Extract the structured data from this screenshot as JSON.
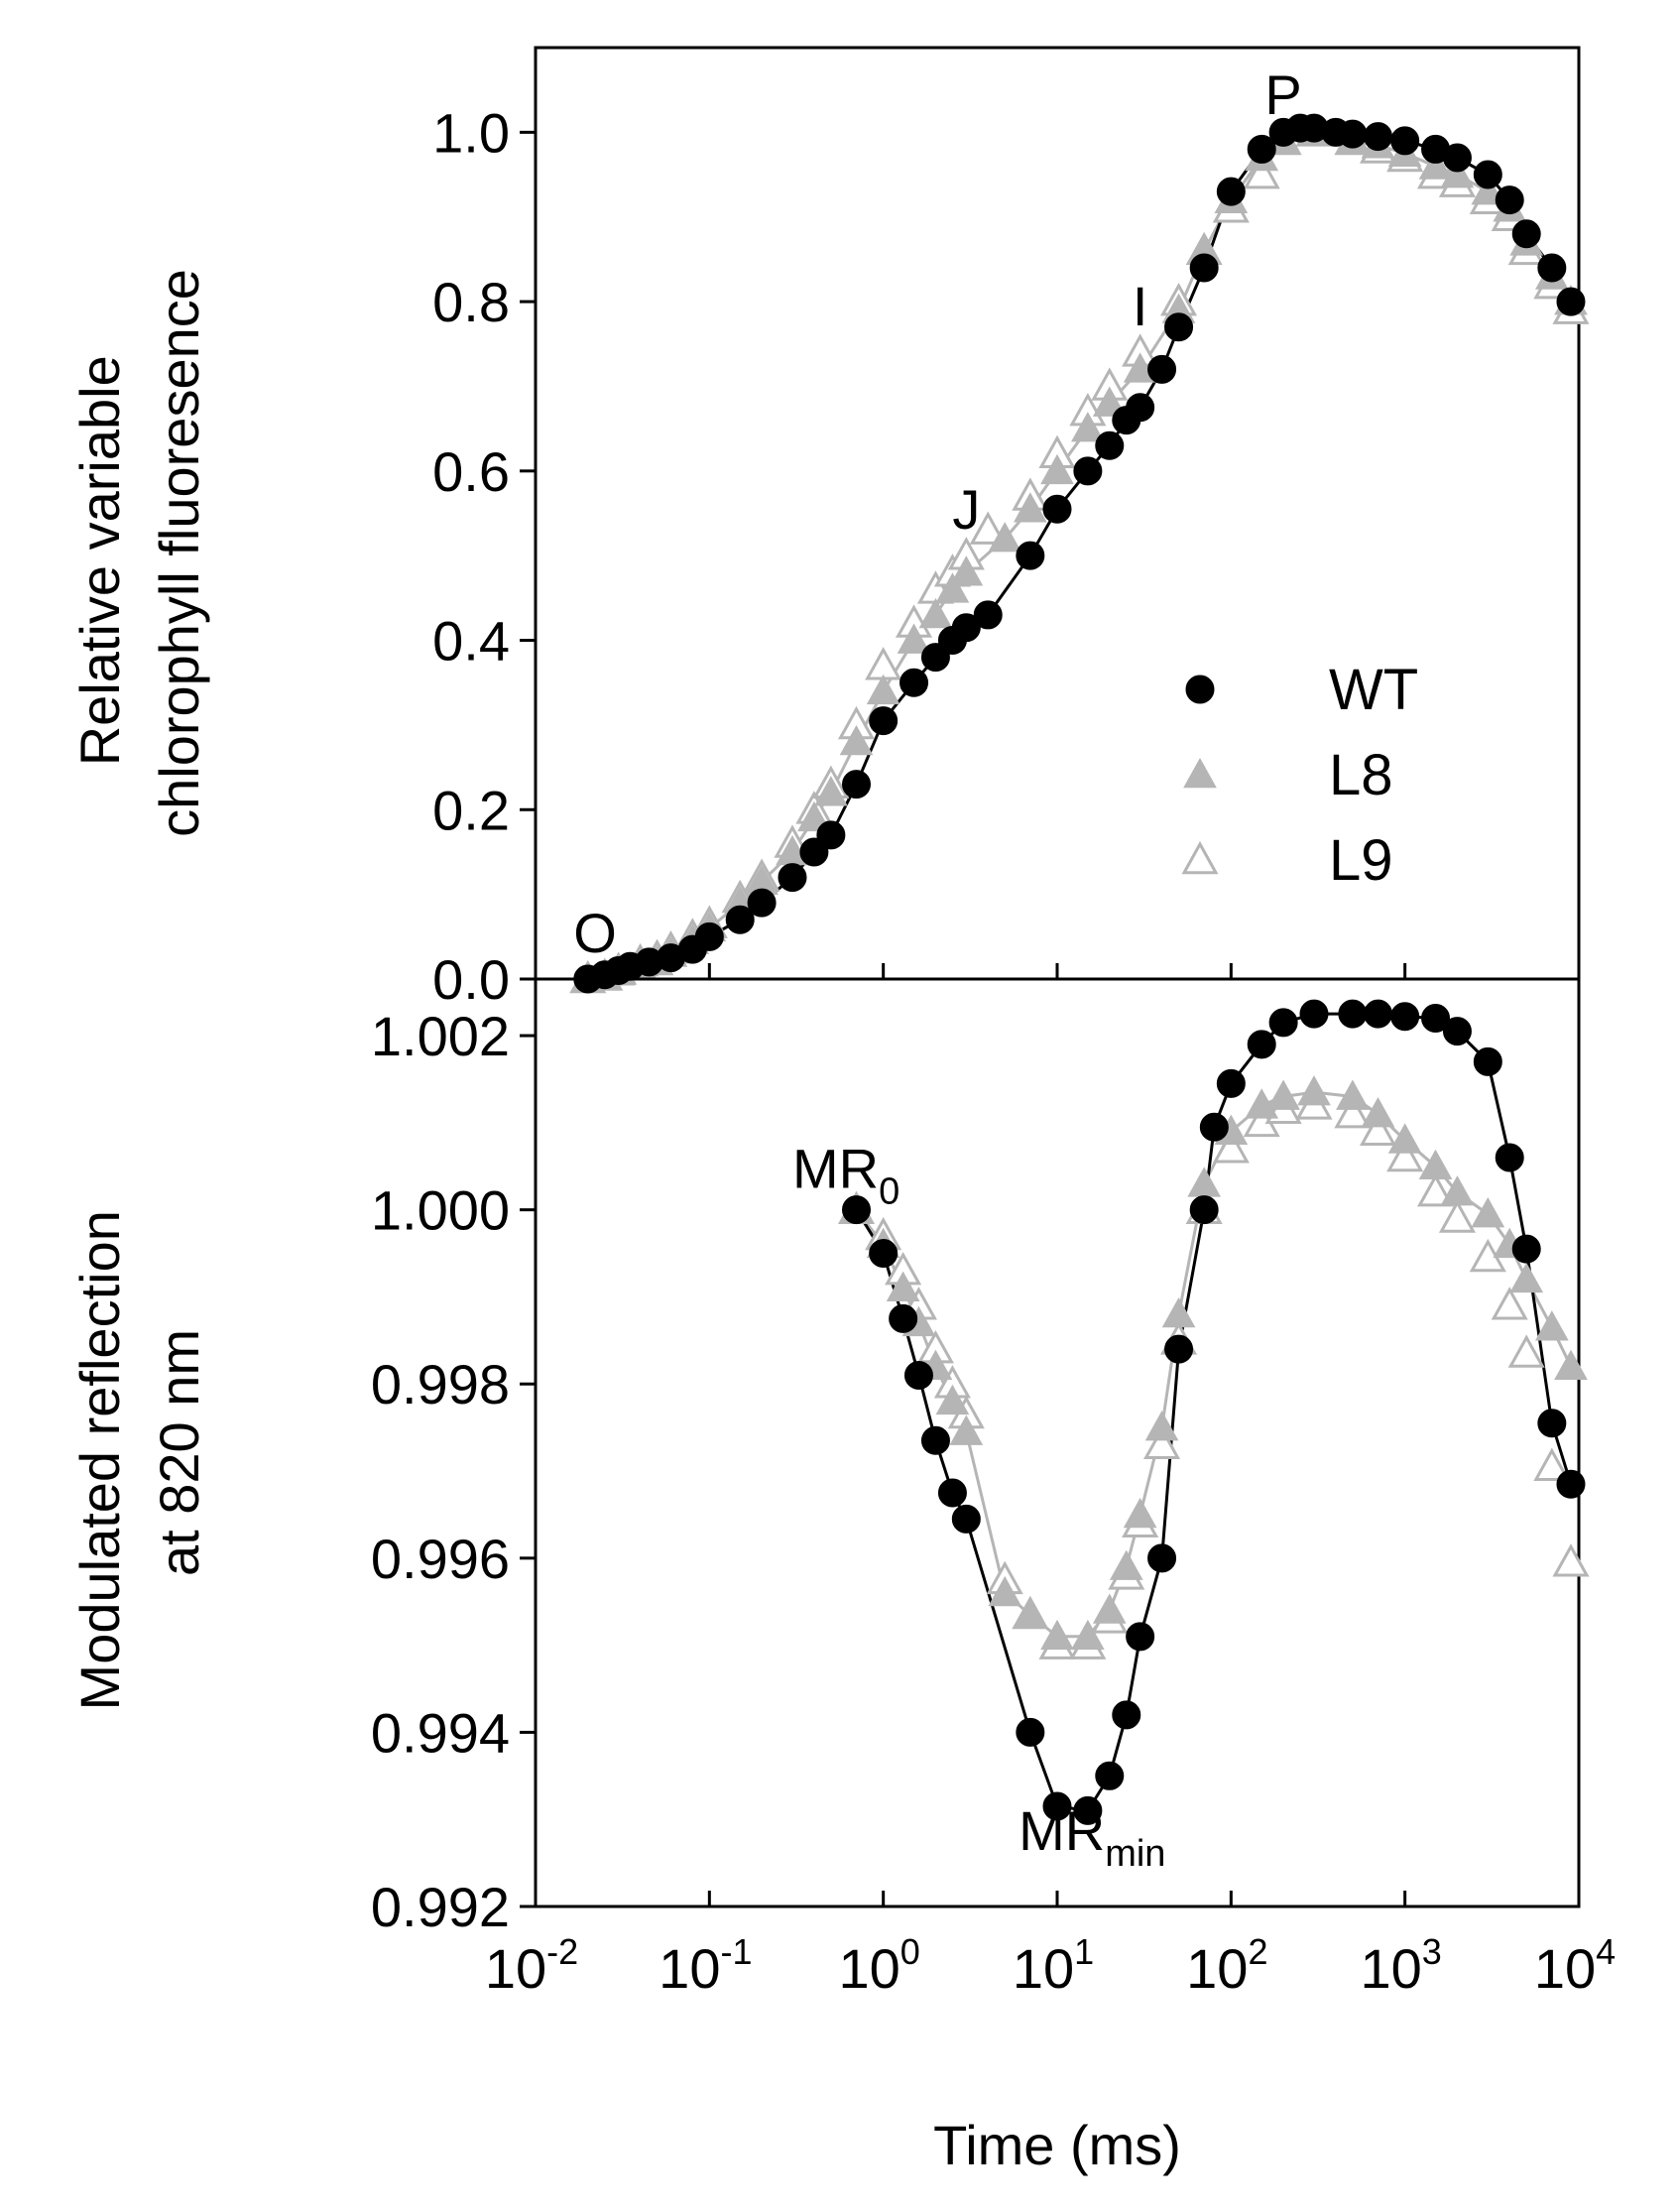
{
  "chart_data": [
    {
      "panel": "top",
      "type": "scatter",
      "ylabel_lines": [
        "Relative variable",
        "chlorophyll fluoresence"
      ],
      "xscale": "log",
      "xlim": [
        0.01,
        10000
      ],
      "ylim": [
        0.0,
        1.1
      ],
      "yticks": [
        0.0,
        0.2,
        0.4,
        0.6,
        0.8,
        1.0
      ],
      "ytick_labels": [
        "0.0",
        "0.2",
        "0.4",
        "0.6",
        "0.8",
        "1.0"
      ],
      "annotations": [
        {
          "text": "O",
          "x": 0.022,
          "y": 0.02
        },
        {
          "text": "J",
          "x": 3.0,
          "y": 0.52
        },
        {
          "text": "I",
          "x": 30,
          "y": 0.76
        },
        {
          "text": "P",
          "x": 200,
          "y": 1.01
        }
      ],
      "legend": {
        "placement": "lower-right",
        "entries": [
          {
            "label": "WT",
            "marker": "filled-circle",
            "color": "#000000"
          },
          {
            "label": "L8",
            "marker": "filled-triangle",
            "color": "#b5b5b5"
          },
          {
            "label": "L9",
            "marker": "open-triangle",
            "color": "#b5b5b5"
          }
        ]
      },
      "series": [
        {
          "name": "WT",
          "marker": "filled-circle",
          "color": "#000000",
          "line": true,
          "x": [
            0.02,
            0.025,
            0.03,
            0.035,
            0.045,
            0.06,
            0.08,
            0.1,
            0.15,
            0.2,
            0.3,
            0.4,
            0.5,
            0.7,
            1.0,
            1.5,
            2.0,
            2.5,
            3.0,
            4.0,
            7.0,
            10,
            15,
            20,
            25,
            30,
            40,
            50,
            70,
            100,
            150,
            200,
            250,
            300,
            400,
            500,
            700,
            1000,
            1500,
            2000,
            3000,
            4000,
            5000,
            7000,
            9000
          ],
          "y": [
            0.0,
            0.005,
            0.01,
            0.015,
            0.02,
            0.025,
            0.035,
            0.05,
            0.07,
            0.09,
            0.12,
            0.15,
            0.17,
            0.23,
            0.305,
            0.35,
            0.38,
            0.4,
            0.415,
            0.43,
            0.5,
            0.555,
            0.6,
            0.63,
            0.66,
            0.675,
            0.72,
            0.77,
            0.84,
            0.93,
            0.98,
            1.0,
            1.005,
            1.005,
            1.0,
            0.998,
            0.995,
            0.99,
            0.98,
            0.97,
            0.95,
            0.92,
            0.88,
            0.84,
            0.8
          ]
        },
        {
          "name": "L8",
          "marker": "filled-triangle",
          "color": "#b5b5b5",
          "line": true,
          "x": [
            0.02,
            0.025,
            0.03,
            0.04,
            0.05,
            0.06,
            0.08,
            0.1,
            0.15,
            0.2,
            0.3,
            0.4,
            0.5,
            0.7,
            1.0,
            1.5,
            2.0,
            2.5,
            3.0,
            5.0,
            7.0,
            10,
            15,
            20,
            30,
            50,
            70,
            100,
            150,
            200,
            300,
            500,
            700,
            1000,
            1500,
            2000,
            3000,
            4000,
            5000,
            7000,
            9000
          ],
          "y": [
            0.0,
            0.003,
            0.008,
            0.015,
            0.02,
            0.03,
            0.045,
            0.06,
            0.09,
            0.115,
            0.15,
            0.19,
            0.22,
            0.28,
            0.34,
            0.4,
            0.43,
            0.46,
            0.48,
            0.52,
            0.555,
            0.6,
            0.65,
            0.68,
            0.72,
            0.79,
            0.86,
            0.92,
            0.97,
            0.99,
            1.0,
            0.99,
            0.985,
            0.975,
            0.96,
            0.95,
            0.93,
            0.91,
            0.87,
            0.83,
            0.8
          ]
        },
        {
          "name": "L9",
          "marker": "open-triangle",
          "color": "#b5b5b5",
          "line": false,
          "x": [
            0.02,
            0.025,
            0.03,
            0.04,
            0.05,
            0.06,
            0.08,
            0.1,
            0.15,
            0.2,
            0.3,
            0.4,
            0.5,
            0.7,
            1.0,
            1.5,
            2.0,
            2.5,
            3.0,
            4.0,
            7.0,
            10,
            15,
            20,
            30,
            50,
            70,
            100,
            150,
            200,
            300,
            500,
            700,
            1000,
            1500,
            2000,
            3000,
            4000,
            5000,
            7000,
            9000
          ],
          "y": [
            0.0,
            0.003,
            0.01,
            0.02,
            0.025,
            0.035,
            0.05,
            0.065,
            0.095,
            0.12,
            0.16,
            0.2,
            0.23,
            0.3,
            0.37,
            0.42,
            0.46,
            0.48,
            0.5,
            0.53,
            0.57,
            0.62,
            0.67,
            0.7,
            0.74,
            0.8,
            0.86,
            0.91,
            0.95,
            0.99,
            1.0,
            0.99,
            0.98,
            0.97,
            0.95,
            0.94,
            0.92,
            0.9,
            0.86,
            0.82,
            0.79
          ]
        }
      ]
    },
    {
      "panel": "bottom",
      "type": "scatter",
      "ylabel_lines": [
        "Modulated reflection",
        "at 820 nm"
      ],
      "xlabel": "Time (ms)",
      "xscale": "log",
      "xlim": [
        0.01,
        10000
      ],
      "xticks": [
        0.01,
        0.1,
        1,
        10,
        100,
        1000,
        10000
      ],
      "xtick_labels": [
        {
          "base": "10",
          "exp": "-2"
        },
        {
          "base": "10",
          "exp": "-1"
        },
        {
          "base": "10",
          "exp": "0"
        },
        {
          "base": "10",
          "exp": "1"
        },
        {
          "base": "10",
          "exp": "2"
        },
        {
          "base": "10",
          "exp": "3"
        },
        {
          "base": "10",
          "exp": "4"
        }
      ],
      "ylim": [
        0.992,
        1.00265
      ],
      "yticks": [
        0.992,
        0.994,
        0.996,
        0.998,
        1.0,
        1.002
      ],
      "ytick_labels": [
        "0.992",
        "0.994",
        "0.996",
        "0.998",
        "1.000",
        "1.002"
      ],
      "annotations": [
        {
          "base": "MR",
          "sub": "0",
          "x": 0.3,
          "y": 1.00025
        },
        {
          "base": "MR",
          "sub": "min",
          "x": 6,
          "y": 0.99265
        }
      ],
      "series": [
        {
          "name": "WT",
          "marker": "filled-circle",
          "color": "#000000",
          "line": true,
          "x": [
            0.7,
            1.0,
            1.3,
            1.6,
            2.0,
            2.5,
            3.0,
            7.0,
            10,
            15,
            20,
            25,
            30,
            40,
            50,
            70,
            80,
            100,
            150,
            200,
            300,
            500,
            700,
            1000,
            1500,
            2000,
            3000,
            4000,
            5000,
            7000,
            9000
          ],
          "y": [
            1.0,
            0.9995,
            0.99875,
            0.9981,
            0.99735,
            0.99675,
            0.99645,
            0.994,
            0.99315,
            0.9931,
            0.9935,
            0.9942,
            0.9951,
            0.996,
            0.9984,
            1.0,
            1.00095,
            1.00145,
            1.0019,
            1.00215,
            1.00225,
            1.00225,
            1.00225,
            1.00222,
            1.0022,
            1.00205,
            1.0017,
            1.0006,
            0.99955,
            0.99755,
            0.99685
          ]
        },
        {
          "name": "L8",
          "marker": "filled-triangle",
          "color": "#b5b5b5",
          "line": true,
          "x": [
            0.7,
            1.0,
            1.3,
            1.6,
            2.0,
            2.5,
            3.0,
            5.0,
            7.0,
            10,
            15,
            20,
            25,
            30,
            40,
            50,
            70,
            100,
            150,
            200,
            300,
            500,
            700,
            1000,
            1500,
            2000,
            3000,
            4000,
            5000,
            7000,
            9000
          ],
          "y": [
            1.0,
            0.9996,
            0.9991,
            0.9987,
            0.9982,
            0.9978,
            0.99745,
            0.9956,
            0.99535,
            0.9951,
            0.9951,
            0.9954,
            0.9959,
            0.9965,
            0.9975,
            0.9988,
            1.0003,
            1.0009,
            1.0012,
            1.0013,
            1.00135,
            1.0013,
            1.0011,
            1.0008,
            1.0005,
            1.0002,
            0.99995,
            0.9996,
            0.9992,
            0.99865,
            0.9982
          ]
        },
        {
          "name": "L9",
          "marker": "open-triangle",
          "color": "#b5b5b5",
          "line": false,
          "x": [
            0.7,
            1.0,
            1.3,
            1.6,
            2.0,
            2.5,
            3.0,
            5.0,
            7.0,
            10,
            15,
            20,
            25,
            30,
            40,
            50,
            70,
            100,
            150,
            200,
            300,
            500,
            700,
            1000,
            1500,
            2000,
            3000,
            4000,
            5000,
            7000,
            9000
          ],
          "y": [
            1.0,
            0.9997,
            0.9993,
            0.9989,
            0.9984,
            0.998,
            0.99765,
            0.99575,
            0.99535,
            0.995,
            0.995,
            0.9953,
            0.9958,
            0.9964,
            0.9973,
            0.9985,
            1.0,
            1.0007,
            1.001,
            1.00115,
            1.0012,
            1.0011,
            1.0009,
            1.0006,
            1.0002,
            0.9999,
            0.99945,
            0.9989,
            0.99835,
            0.99705,
            0.99595
          ]
        }
      ]
    }
  ]
}
